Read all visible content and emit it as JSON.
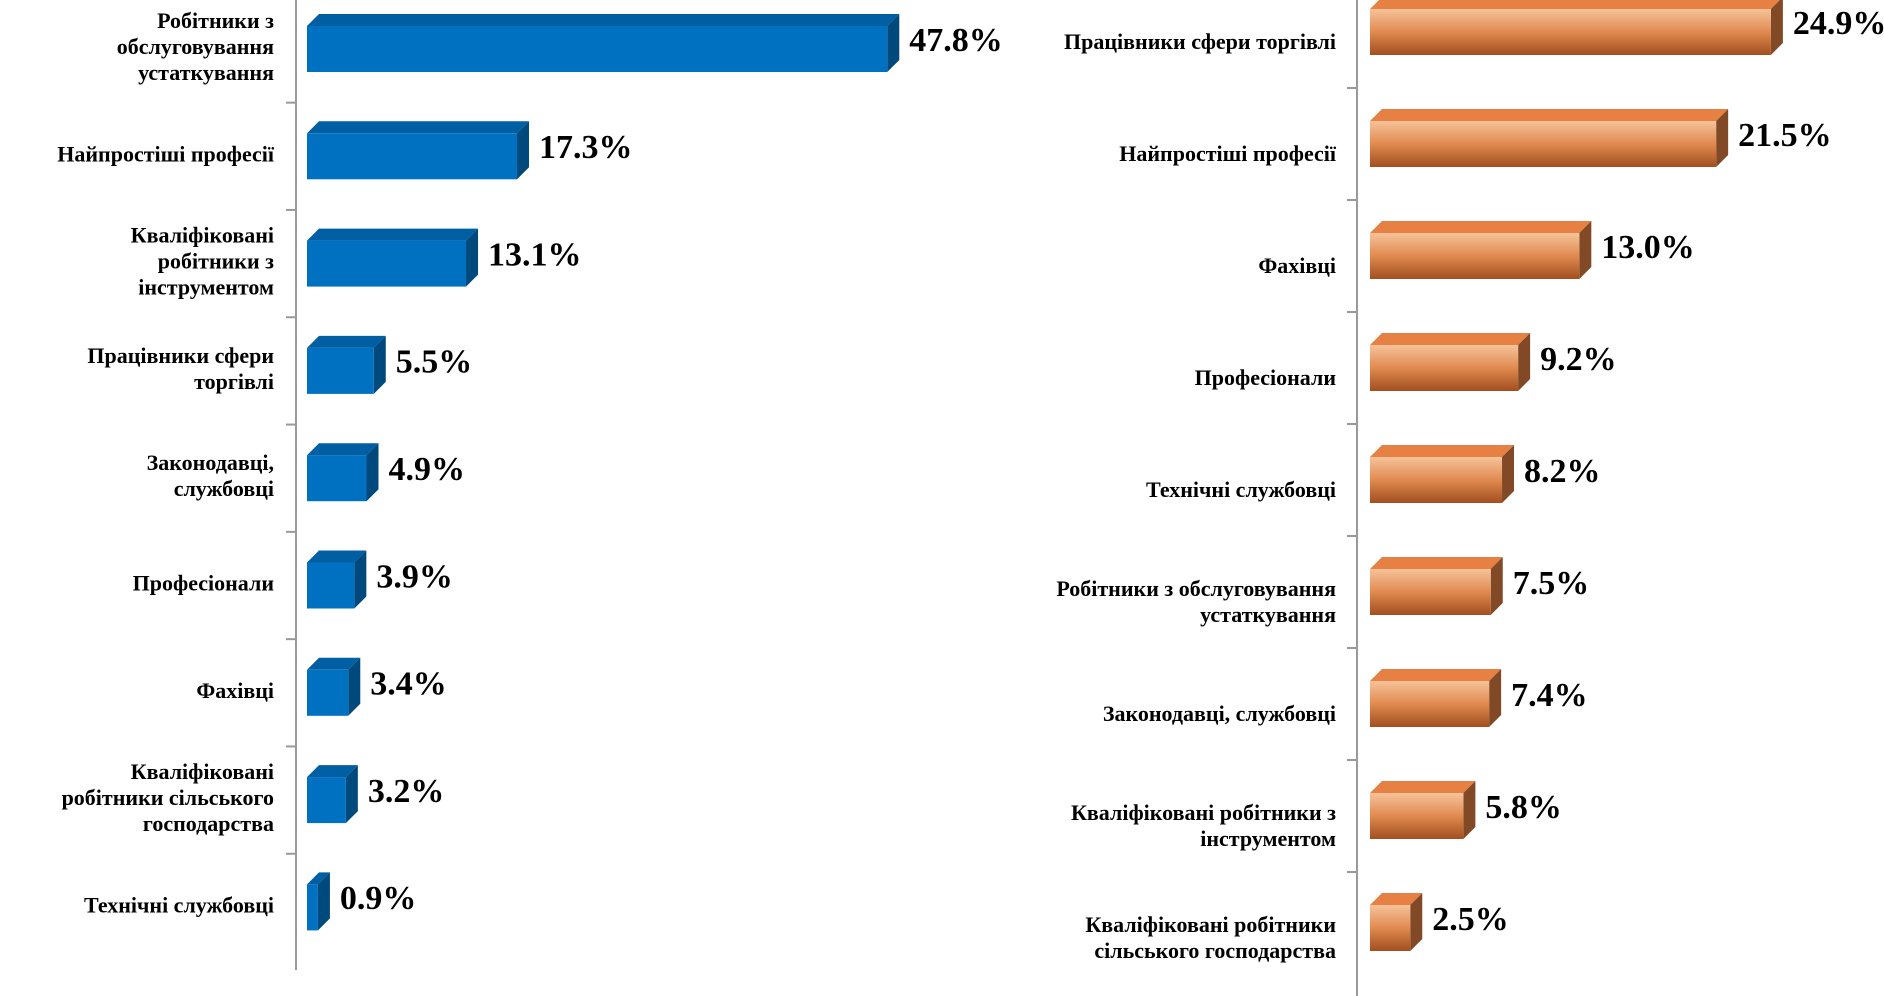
{
  "chart_data": [
    {
      "type": "bar",
      "color": "#0070c0",
      "xlim": [
        0,
        50
      ],
      "categories": [
        "Робітники з обслуговування устаткування",
        "Найпростіші професії",
        "Кваліфіковані робітники з інструментом",
        "Працівники сфери торгівлі",
        "Законодавці, службовці",
        "Професіонали",
        "Фахівці",
        "Кваліфіковані робітники сільського господарства",
        "Технічні службовці"
      ],
      "values": [
        47.8,
        17.3,
        13.1,
        5.5,
        4.9,
        3.9,
        3.4,
        3.2,
        0.9
      ],
      "value_labels": [
        "47.8%",
        "17.3%",
        "13.1%",
        "5.5%",
        "4.9%",
        "3.9%",
        "3.4%",
        "3.2%",
        "0.9%"
      ]
    },
    {
      "type": "bar",
      "color": "#c8703a",
      "xlim": [
        0,
        30
      ],
      "categories": [
        "Працівники сфери торгівлі",
        "Найпростіші професії",
        "Фахівці",
        "Професіонали",
        "Технічні службовці",
        "Робітники з обслуговування устаткування",
        "Законодавці, службовці",
        "Кваліфіковані робітники з інструментом",
        "Кваліфіковані робітники сільського господарства"
      ],
      "values": [
        24.9,
        21.5,
        13.0,
        9.2,
        8.2,
        7.5,
        7.4,
        5.8,
        2.5
      ],
      "value_labels": [
        "24.9%",
        "21.5%",
        "13.0%",
        "9.2%",
        "8.2%",
        "7.5%",
        "7.4%",
        "5.8%",
        "2.5%"
      ]
    }
  ]
}
